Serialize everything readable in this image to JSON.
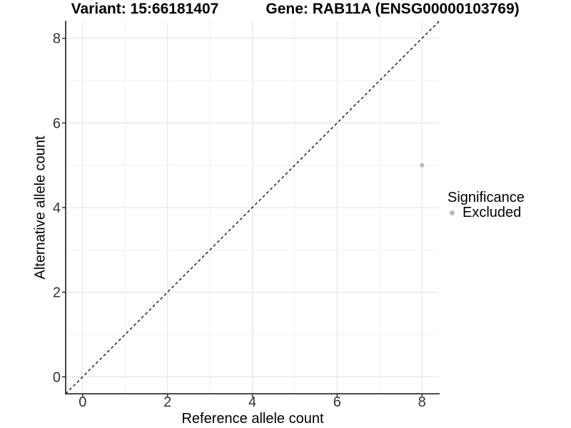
{
  "chart_data": {
    "type": "scatter",
    "titles": {
      "left": "Variant: 15:66181407",
      "right": "Gene: RAB11A (ENSG00000103769)"
    },
    "xlabel": "Reference allele count",
    "ylabel": "Alternative allele count",
    "xlim": [
      -0.4,
      8.4
    ],
    "ylim": [
      -0.4,
      8.4
    ],
    "xticks": [
      0,
      2,
      4,
      6,
      8
    ],
    "yticks": [
      0,
      2,
      4,
      6,
      8
    ],
    "minor_x": [
      1,
      3,
      5,
      7
    ],
    "minor_y": [
      1,
      3,
      5,
      7
    ],
    "grid": true,
    "identity_line": {
      "style": "dashed",
      "color": "#000000",
      "from": [
        -0.4,
        -0.4
      ],
      "to": [
        8.4,
        8.4
      ]
    },
    "series": [
      {
        "name": "Excluded",
        "color": "#b9b9b9",
        "points": [
          {
            "x": 8,
            "y": 5
          }
        ]
      }
    ],
    "legend": {
      "position": "right",
      "title": "Significance",
      "items": [
        {
          "label": "Excluded",
          "color": "#b9b9b9"
        }
      ]
    }
  },
  "colors": {
    "background": "#ffffff",
    "axis": "#333333",
    "tick": "#333333",
    "tick_label": "#333333",
    "grid_major": "#e7e7e7",
    "grid_minor": "#f0f0f0",
    "title_text": "#000000"
  }
}
